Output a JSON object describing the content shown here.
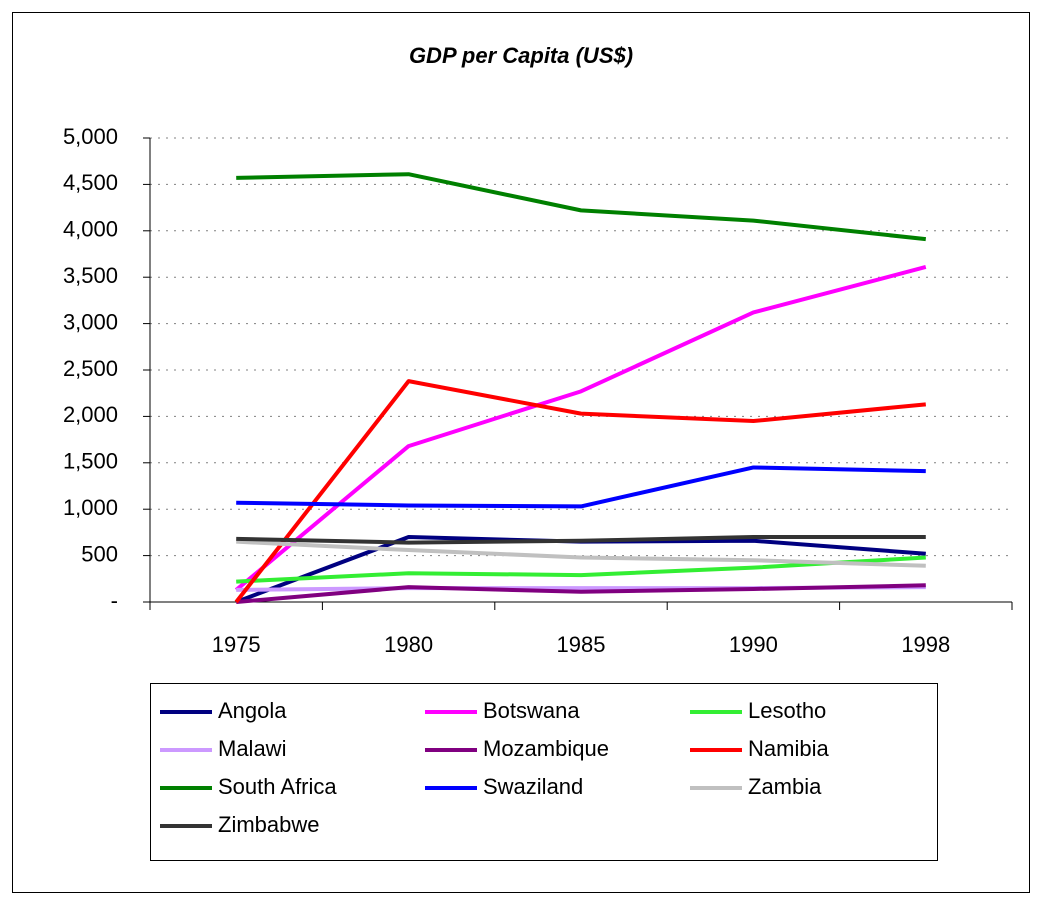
{
  "chart_data": {
    "type": "line",
    "title": "GDP per Capita (US$)",
    "categories": [
      "1975",
      "1980",
      "1985",
      "1990",
      "1998"
    ],
    "series": [
      {
        "name": "Angola",
        "color": "#000080",
        "values": [
          0,
          700,
          650,
          660,
          520
        ]
      },
      {
        "name": "Botswana",
        "color": "#ff00ff",
        "values": [
          130,
          1680,
          2270,
          3120,
          3610
        ]
      },
      {
        "name": "Lesotho",
        "color": "#33ee33",
        "values": [
          220,
          310,
          290,
          370,
          480
        ]
      },
      {
        "name": "Malawi",
        "color": "#cc99ff",
        "values": [
          130,
          150,
          150,
          150,
          160
        ]
      },
      {
        "name": "Mozambique",
        "color": "#800080",
        "values": [
          0,
          160,
          110,
          140,
          180
        ]
      },
      {
        "name": "Namibia",
        "color": "#ff0000",
        "values": [
          0,
          2380,
          2030,
          1950,
          2130
        ]
      },
      {
        "name": "South Africa",
        "color": "#008000",
        "values": [
          4570,
          4610,
          4220,
          4110,
          3910
        ]
      },
      {
        "name": "Swaziland",
        "color": "#0000ff",
        "values": [
          1070,
          1040,
          1030,
          1450,
          1410
        ]
      },
      {
        "name": "Zambia",
        "color": "#c0c0c0",
        "values": [
          650,
          560,
          480,
          450,
          390
        ]
      },
      {
        "name": "Zimbabwe",
        "color": "#333333",
        "values": [
          680,
          640,
          660,
          700,
          700
        ]
      }
    ],
    "ylim": [
      0,
      5000
    ],
    "yticks": [
      {
        "value": 0,
        "label": "-"
      },
      500,
      {
        "value": 1000,
        "label": "1,000"
      },
      {
        "value": 1500,
        "label": "1,500"
      },
      {
        "value": 2000,
        "label": "2,000"
      },
      {
        "value": 2500,
        "label": "2,500"
      },
      {
        "value": 3000,
        "label": "3,000"
      },
      {
        "value": 3500,
        "label": "3,500"
      },
      {
        "value": 4000,
        "label": "4,000"
      },
      {
        "value": 4500,
        "label": "4,500"
      },
      {
        "value": 5000,
        "label": "5,000"
      }
    ],
    "grid": true,
    "legend": "bottom"
  }
}
